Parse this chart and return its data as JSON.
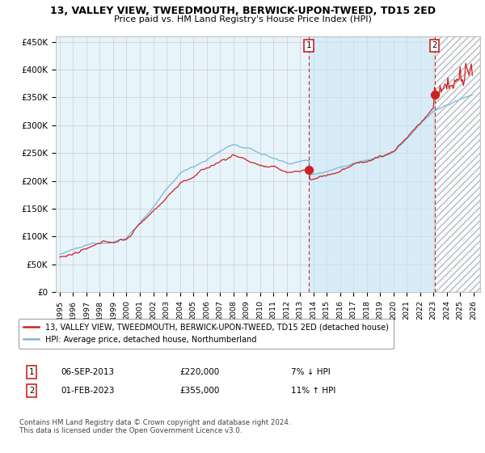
{
  "title": "13, VALLEY VIEW, TWEEDMOUTH, BERWICK-UPON-TWEED, TD15 2ED",
  "subtitle": "Price paid vs. HM Land Registry's House Price Index (HPI)",
  "ylabel_ticks": [
    "£0",
    "£50K",
    "£100K",
    "£150K",
    "£200K",
    "£250K",
    "£300K",
    "£350K",
    "£400K",
    "£450K"
  ],
  "ytick_values": [
    0,
    50000,
    100000,
    150000,
    200000,
    250000,
    300000,
    350000,
    400000,
    450000
  ],
  "ylim": [
    0,
    460000
  ],
  "xlim_start": 1994.7,
  "xlim_end": 2026.5,
  "sale1_date": 2013.67,
  "sale1_price": 220000,
  "sale1_label": "1",
  "sale2_date": 2023.08,
  "sale2_price": 355000,
  "sale2_label": "2",
  "hpi_color": "#7ab8d9",
  "price_color": "#cc2222",
  "vline_color": "#cc2222",
  "shaded_fill_color": "#ddeeff",
  "background_color": "#ffffff",
  "grid_color": "#cccccc",
  "legend_line1": "13, VALLEY VIEW, TWEEDMOUTH, BERWICK-UPON-TWEED, TD15 2ED (detached house)",
  "legend_line2": "HPI: Average price, detached house, Northumberland",
  "table_row1_num": "1",
  "table_row1_date": "06-SEP-2013",
  "table_row1_price": "£220,000",
  "table_row1_hpi": "7% ↓ HPI",
  "table_row2_num": "2",
  "table_row2_date": "01-FEB-2023",
  "table_row2_price": "£355,000",
  "table_row2_hpi": "11% ↑ HPI",
  "footer": "Contains HM Land Registry data © Crown copyright and database right 2024.\nThis data is licensed under the Open Government Licence v3.0."
}
